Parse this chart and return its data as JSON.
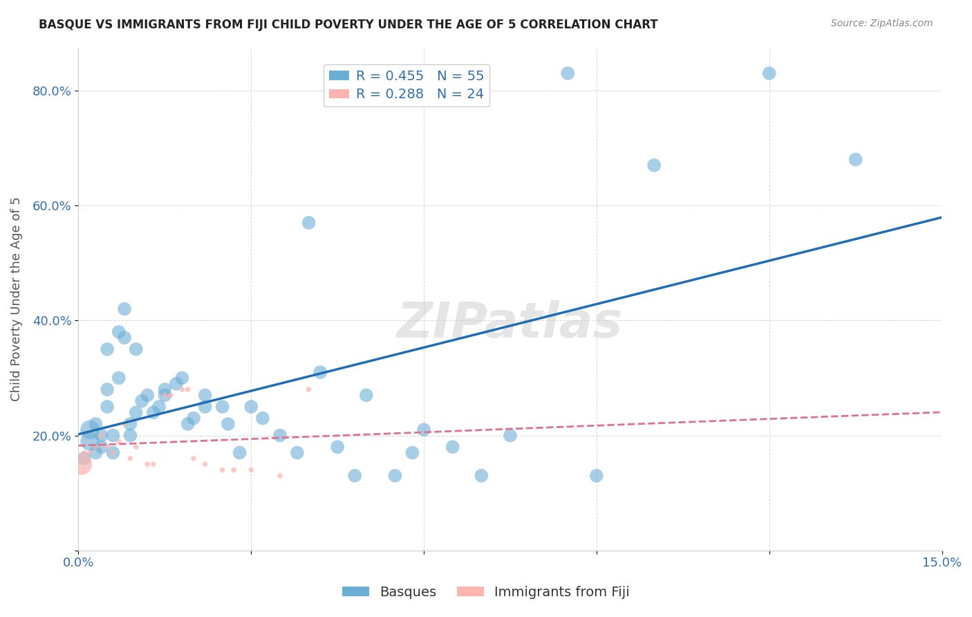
{
  "title": "BASQUE VS IMMIGRANTS FROM FIJI CHILD POVERTY UNDER THE AGE OF 5 CORRELATION CHART",
  "source": "Source: ZipAtlas.com",
  "xlabel_bottom": "",
  "ylabel": "Child Poverty Under the Age of 5",
  "xlim": [
    0,
    0.15
  ],
  "ylim": [
    0,
    0.875
  ],
  "xticks": [
    0.0,
    0.03,
    0.06,
    0.09,
    0.12,
    0.15
  ],
  "yticks": [
    0.0,
    0.2,
    0.4,
    0.6,
    0.8
  ],
  "ytick_labels": [
    "",
    "20.0%",
    "40.0%",
    "60.0%",
    "80.0%"
  ],
  "xtick_labels": [
    "0.0%",
    "",
    "",
    "",
    "",
    "15.0%"
  ],
  "blue_R": 0.455,
  "blue_N": 55,
  "pink_R": 0.288,
  "pink_N": 24,
  "blue_color": "#6baed6",
  "pink_color": "#fbb4ae",
  "blue_line_color": "#1f6eb5",
  "pink_line_color": "#e07090",
  "watermark": "ZIPatlas",
  "legend_label_blue": "Basques",
  "legend_label_pink": "Immigrants from Fiji",
  "blue_x": [
    0.001,
    0.002,
    0.002,
    0.003,
    0.003,
    0.004,
    0.004,
    0.005,
    0.005,
    0.005,
    0.006,
    0.006,
    0.007,
    0.007,
    0.008,
    0.008,
    0.009,
    0.009,
    0.01,
    0.01,
    0.011,
    0.012,
    0.013,
    0.014,
    0.015,
    0.015,
    0.017,
    0.018,
    0.019,
    0.02,
    0.022,
    0.022,
    0.025,
    0.026,
    0.028,
    0.03,
    0.032,
    0.035,
    0.038,
    0.04,
    0.042,
    0.045,
    0.048,
    0.05,
    0.055,
    0.058,
    0.06,
    0.065,
    0.07,
    0.075,
    0.085,
    0.09,
    0.1,
    0.12,
    0.135
  ],
  "blue_y": [
    0.16,
    0.19,
    0.21,
    0.17,
    0.22,
    0.18,
    0.2,
    0.25,
    0.28,
    0.35,
    0.17,
    0.2,
    0.38,
    0.3,
    0.37,
    0.42,
    0.2,
    0.22,
    0.24,
    0.35,
    0.26,
    0.27,
    0.24,
    0.25,
    0.27,
    0.28,
    0.29,
    0.3,
    0.22,
    0.23,
    0.25,
    0.27,
    0.25,
    0.22,
    0.17,
    0.25,
    0.23,
    0.2,
    0.17,
    0.57,
    0.31,
    0.18,
    0.13,
    0.27,
    0.13,
    0.17,
    0.21,
    0.18,
    0.13,
    0.2,
    0.83,
    0.13,
    0.67,
    0.83,
    0.68
  ],
  "blue_sizes": [
    30,
    30,
    30,
    30,
    30,
    30,
    30,
    30,
    30,
    30,
    30,
    30,
    30,
    30,
    30,
    30,
    30,
    30,
    30,
    30,
    30,
    30,
    30,
    30,
    30,
    30,
    30,
    30,
    30,
    30,
    30,
    30,
    30,
    30,
    30,
    30,
    30,
    30,
    30,
    30,
    30,
    30,
    30,
    30,
    30,
    30,
    30,
    30,
    30,
    30,
    30,
    30,
    30,
    30,
    30
  ],
  "pink_x": [
    0.0005,
    0.001,
    0.002,
    0.003,
    0.004,
    0.005,
    0.006,
    0.007,
    0.008,
    0.009,
    0.01,
    0.012,
    0.013,
    0.015,
    0.016,
    0.018,
    0.019,
    0.02,
    0.022,
    0.025,
    0.027,
    0.03,
    0.035,
    0.04
  ],
  "pink_y": [
    0.15,
    0.17,
    0.17,
    0.18,
    0.2,
    0.18,
    0.17,
    0.19,
    0.22,
    0.16,
    0.18,
    0.15,
    0.15,
    0.27,
    0.27,
    0.28,
    0.28,
    0.16,
    0.15,
    0.14,
    0.14,
    0.14,
    0.13,
    0.28
  ],
  "pink_sizes": [
    500,
    30,
    30,
    30,
    30,
    30,
    30,
    30,
    30,
    30,
    30,
    30,
    30,
    30,
    30,
    30,
    30,
    30,
    30,
    30,
    30,
    30,
    30,
    30
  ]
}
